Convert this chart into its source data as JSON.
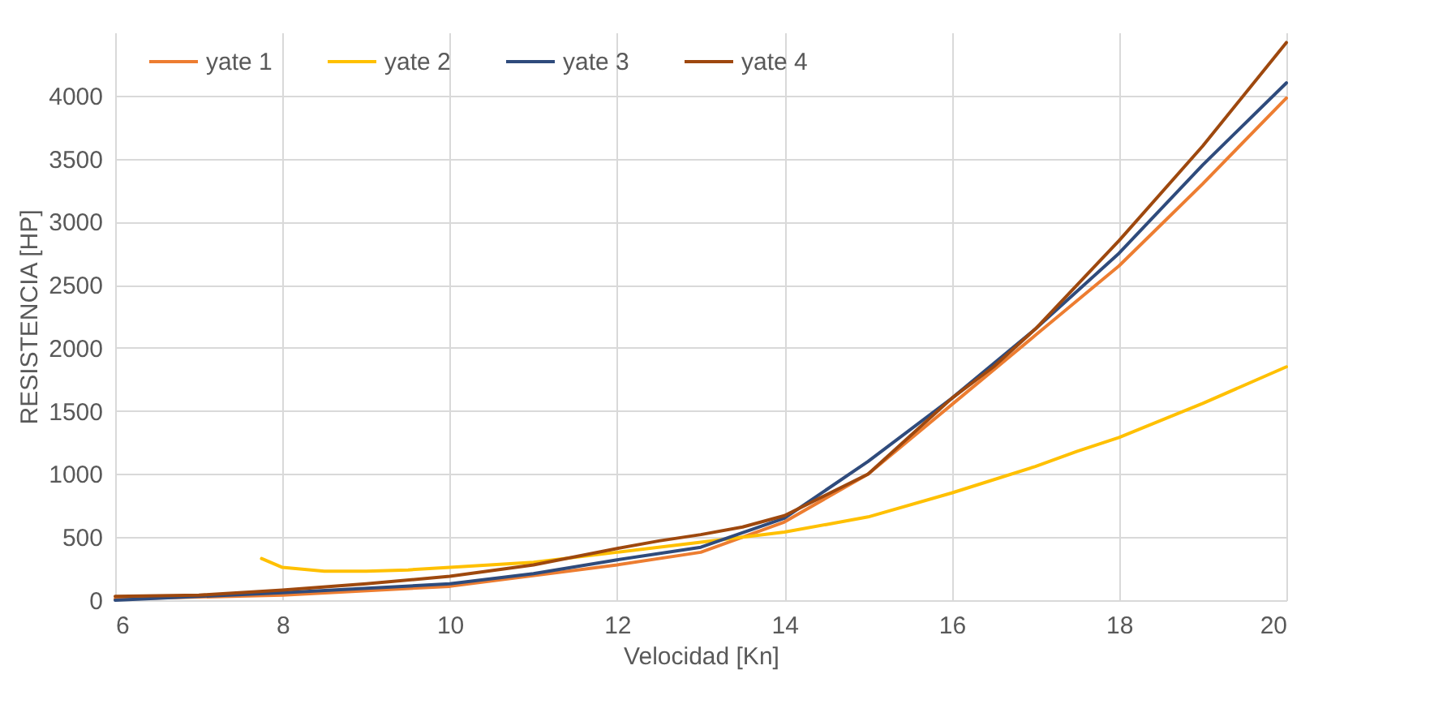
{
  "chart_data": {
    "type": "line",
    "xlabel": "Velocidad [Kn]",
    "ylabel": "RESISTENCIA [HP]",
    "xlim": [
      6,
      20
    ],
    "xticks": [
      6,
      8,
      10,
      12,
      14,
      16,
      18,
      20
    ],
    "ylim": [
      0,
      4500
    ],
    "yticks": [
      0,
      500,
      1000,
      1500,
      2000,
      2500,
      3000,
      3500,
      4000
    ],
    "grid": true,
    "legend": "top left",
    "marker": "none",
    "line_style": "solid",
    "series": [
      {
        "name": "yate 1",
        "color": "#ed7d31",
        "x": [
          6,
          8,
          10,
          12,
          13,
          14,
          15,
          16,
          17,
          18,
          19,
          20
        ],
        "values": [
          10,
          40,
          110,
          280,
          380,
          620,
          1000,
          1550,
          2100,
          2650,
          3300,
          3980
        ]
      },
      {
        "name": "yate 2",
        "color": "#ffc000",
        "x": [
          7.75,
          8,
          8.5,
          9,
          9.5,
          10,
          11,
          12,
          13,
          14,
          14.5,
          15,
          16,
          17,
          17.5,
          18,
          19,
          20
        ],
        "values": [
          330,
          260,
          230,
          230,
          240,
          260,
          300,
          380,
          460,
          540,
          600,
          660,
          850,
          1060,
          1180,
          1290,
          1560,
          1850
        ]
      },
      {
        "name": "yate 3",
        "color": "#2f4b7c",
        "x": [
          6,
          8,
          10,
          11,
          12,
          13,
          14,
          15,
          16,
          17,
          18,
          19,
          20
        ],
        "values": [
          0,
          60,
          130,
          210,
          320,
          420,
          650,
          1100,
          1600,
          2150,
          2750,
          3450,
          4100
        ]
      },
      {
        "name": "yate 4",
        "color": "#9e480e",
        "x": [
          6,
          7,
          8,
          9,
          10,
          11,
          12,
          12.5,
          13,
          13.5,
          14,
          15,
          15.5,
          16,
          16.5,
          17,
          17.5,
          18,
          19,
          20
        ],
        "values": [
          30,
          40,
          80,
          130,
          190,
          280,
          410,
          470,
          520,
          580,
          670,
          1000,
          1300,
          1600,
          1850,
          2150,
          2500,
          2850,
          3600,
          4420
        ]
      }
    ]
  }
}
